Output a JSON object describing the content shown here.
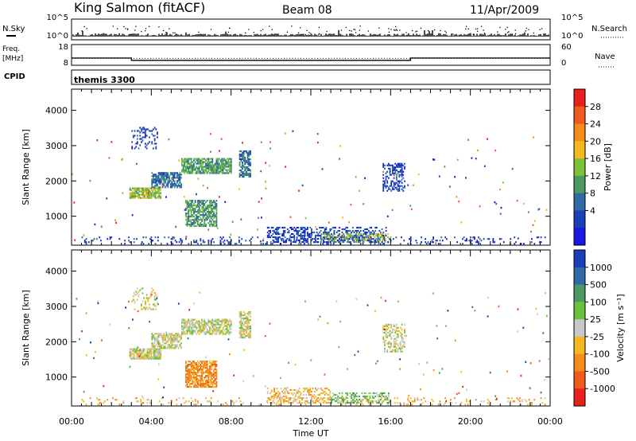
{
  "header": {
    "station": "King Salmon (fitACF)",
    "beam": "Beam 08",
    "date": "11/Apr/2009"
  },
  "top_strip": {
    "nsky_label": "N.Sky",
    "nsearch_label": "N.Search",
    "left_ticks": [
      "10^5",
      "10^0"
    ],
    "right_ticks": [
      "10^5",
      "10^0"
    ]
  },
  "freq_strip": {
    "freq_label_1": "Freq.",
    "freq_label_2": "[MHz]",
    "left_ticks": [
      "18",
      "8"
    ],
    "right_ticks": [
      "60",
      "0"
    ],
    "nave_label": "Nave",
    "freq_mhz": [
      {
        "t": 0,
        "f": 11.5
      },
      {
        "t": 3,
        "f": 11.5
      },
      {
        "t": 3,
        "f": 10.4
      },
      {
        "t": 17,
        "f": 10.4
      },
      {
        "t": 17,
        "f": 11.5
      },
      {
        "t": 24,
        "f": 11.5
      }
    ],
    "nave_level": 20
  },
  "cpid": {
    "label": "CPID",
    "program": "themis 3300"
  },
  "chart_data": [
    {
      "type": "heatmap",
      "name": "power",
      "ylabel": "Slant Range [km]",
      "xlabel": "",
      "xlim": [
        0,
        24
      ],
      "ylim": [
        180,
        4600
      ],
      "yticks": [
        1000,
        2000,
        3000,
        4000
      ],
      "colorbar": {
        "label": "Power [dB]",
        "ticks": [
          "28",
          "24",
          "20",
          "16",
          "12",
          "8",
          "4"
        ],
        "colors": [
          "#e8211c",
          "#f05a1e",
          "#f58c1e",
          "#f5b81e",
          "#7cc23a",
          "#4a9a62",
          "#2f6aa8",
          "#1a3fb8",
          "#1818e0"
        ]
      },
      "regions": [
        {
          "t0": 2.9,
          "t1": 4.5,
          "r0": 1500,
          "r1": 1800,
          "c": 4,
          "d": 0.85
        },
        {
          "t0": 4.0,
          "t1": 5.5,
          "r0": 1800,
          "r1": 2250,
          "c": 6,
          "d": 0.75
        },
        {
          "t0": 5.5,
          "t1": 8.0,
          "r0": 2200,
          "r1": 2650,
          "c": 5,
          "d": 0.75
        },
        {
          "t0": 5.7,
          "t1": 7.3,
          "r0": 700,
          "r1": 1450,
          "c": 5,
          "d": 0.7
        },
        {
          "t0": 8.4,
          "t1": 9.0,
          "r0": 2100,
          "r1": 2850,
          "c": 6,
          "d": 0.7
        },
        {
          "t0": 3.0,
          "t1": 4.3,
          "r0": 2900,
          "r1": 3500,
          "c": 7,
          "d": 0.25
        },
        {
          "t0": 15.6,
          "t1": 16.7,
          "r0": 1700,
          "r1": 2500,
          "c": 7,
          "d": 0.45
        },
        {
          "t0": 9.8,
          "t1": 15.8,
          "r0": 250,
          "r1": 700,
          "c": 7,
          "d": 0.4
        },
        {
          "t0": 12.5,
          "t1": 16.0,
          "r0": 250,
          "r1": 500,
          "c": 4,
          "d": 0.45
        },
        {
          "t0": 0.5,
          "t1": 23.8,
          "r0": 200,
          "r1": 400,
          "c": 7,
          "d": 0.15
        }
      ]
    },
    {
      "type": "heatmap",
      "name": "velocity",
      "ylabel": "Slant Range [km]",
      "xlabel": "Time UT",
      "xlim": [
        0,
        24
      ],
      "ylim": [
        180,
        4600
      ],
      "yticks": [
        1000,
        2000,
        3000,
        4000
      ],
      "xticks": [
        "00:00",
        "04:00",
        "08:00",
        "12:00",
        "16:00",
        "20:00",
        "00:00"
      ],
      "colorbar": {
        "label": "Velocity [m s⁻¹]",
        "ticks": [
          "1000",
          "500",
          "100",
          "25",
          "-25",
          "-100",
          "-500",
          "-1000"
        ],
        "colors": [
          "#1a3fb8",
          "#2f6aa8",
          "#4a9a62",
          "#6ac23a",
          "#c8c8c8",
          "#f5b81e",
          "#f58c1e",
          "#f05a1e",
          "#e8211c"
        ]
      },
      "regions": [
        {
          "t0": 2.9,
          "t1": 4.5,
          "r0": 1500,
          "r1": 1800,
          "c": 4,
          "d": 0.85
        },
        {
          "t0": 4.0,
          "t1": 5.5,
          "r0": 1800,
          "r1": 2250,
          "c": 4,
          "d": 0.75
        },
        {
          "t0": 5.5,
          "t1": 8.0,
          "r0": 2200,
          "r1": 2650,
          "c": 4,
          "d": 0.7
        },
        {
          "t0": 5.7,
          "t1": 7.3,
          "r0": 700,
          "r1": 1450,
          "c": 6,
          "d": 0.75
        },
        {
          "t0": 8.4,
          "t1": 9.0,
          "r0": 2100,
          "r1": 2850,
          "c": 4,
          "d": 0.7
        },
        {
          "t0": 3.0,
          "t1": 4.3,
          "r0": 2900,
          "r1": 3500,
          "c": 4,
          "d": 0.25
        },
        {
          "t0": 15.6,
          "t1": 16.7,
          "r0": 1700,
          "r1": 2500,
          "c": 4,
          "d": 0.45
        },
        {
          "t0": 9.8,
          "t1": 13.0,
          "r0": 250,
          "r1": 700,
          "c": 5,
          "d": 0.4
        },
        {
          "t0": 13.0,
          "t1": 16.0,
          "r0": 250,
          "r1": 550,
          "c": 3,
          "d": 0.45
        },
        {
          "t0": 0.5,
          "t1": 23.8,
          "r0": 200,
          "r1": 400,
          "c": 5,
          "d": 0.12
        }
      ]
    }
  ]
}
